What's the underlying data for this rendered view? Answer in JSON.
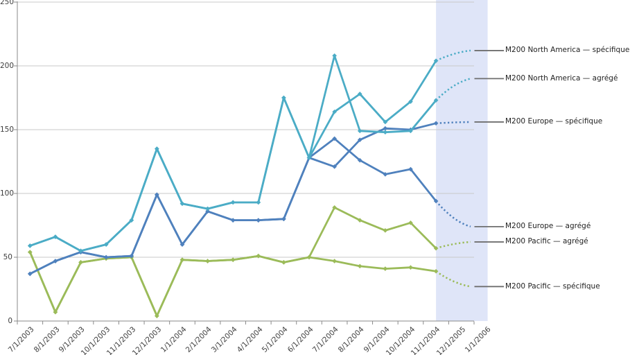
{
  "chart_data": {
    "type": "line",
    "title": "",
    "x_axis": {
      "labels": [
        "7/1/2003",
        "8/1/2003",
        "9/1/2003",
        "10/1/2003",
        "11/1/2003",
        "12/1/2003",
        "1/1/2004",
        "2/1/2004",
        "3/1/2004",
        "4/1/2004",
        "5/1/2004",
        "6/1/2004",
        "7/1/2004",
        "8/1/2004",
        "9/1/2004",
        "10/1/2004",
        "11/1/2004",
        "12/1/2005",
        "1/1/2006"
      ]
    },
    "y_axis": {
      "min": 0,
      "max": 250,
      "step": 50,
      "labels": [
        "0",
        "50",
        "100",
        "150",
        "200",
        "250"
      ]
    },
    "forecast": {
      "start_label": "11/1/2004",
      "end_label": "1/1/2006",
      "band_color": "#dfe5f8",
      "line_style": "dotted",
      "start_index": 16
    },
    "grid_color": "#c9c9c9",
    "axis_color": "#8a8a8a",
    "leader_color": "#6f6f6f",
    "series": [
      {
        "key": "pacific-specifique",
        "name": "M200 Pacific — spécifique",
        "color": "#9BBB59",
        "values": [
          54,
          7,
          46,
          49,
          50,
          4,
          48,
          47,
          48,
          51,
          46,
          50,
          47,
          43,
          41,
          42,
          39
        ],
        "forecast_value": 27
      },
      {
        "key": "pacific-agrege",
        "name": "M200 Pacific — agrégé",
        "color": "#9BBB59",
        "values": [
          54,
          7,
          46,
          49,
          50,
          4,
          48,
          47,
          48,
          51,
          46,
          50,
          89,
          79,
          71,
          77,
          57
        ],
        "forecast_value": 62
      },
      {
        "key": "europe-agrege",
        "name": "M200 Europe — agrégé",
        "color": "#4F81BD",
        "values": [
          37,
          47,
          54,
          50,
          51,
          99,
          60,
          86,
          79,
          79,
          80,
          128,
          143,
          126,
          115,
          119,
          94
        ],
        "forecast_value": 74
      },
      {
        "key": "europe-specifique",
        "name": "M200 Europe — spécifique",
        "color": "#4F81BD",
        "values": [
          37,
          47,
          54,
          50,
          51,
          99,
          60,
          86,
          79,
          79,
          80,
          128,
          121,
          142,
          151,
          150,
          155
        ],
        "forecast_value": 156
      },
      {
        "key": "na-agrege",
        "name": "M200 North America — agrégé",
        "color": "#4BACC6",
        "values": [
          59,
          66,
          55,
          60,
          79,
          135,
          92,
          88,
          93,
          93,
          175,
          128,
          208,
          149,
          148,
          149,
          173
        ],
        "forecast_value": 190
      },
      {
        "key": "na-specifique",
        "name": "M200 North America — spécifique",
        "color": "#4BACC6",
        "values": [
          59,
          66,
          55,
          60,
          79,
          135,
          92,
          88,
          93,
          93,
          175,
          128,
          164,
          178,
          156,
          172,
          204
        ],
        "forecast_value": 212
      }
    ]
  }
}
